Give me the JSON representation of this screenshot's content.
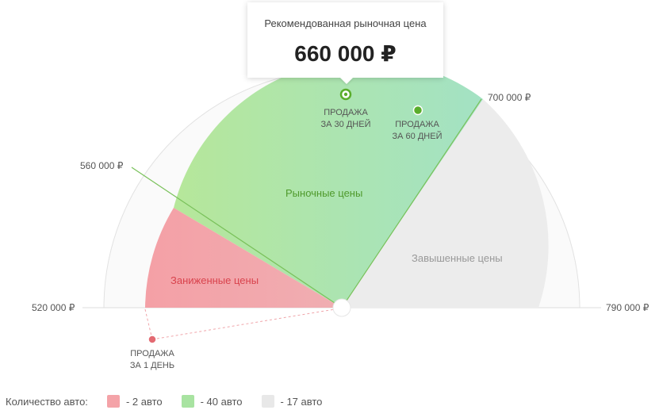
{
  "tooltip": {
    "title": "Рекомендованная рыночная цена",
    "price": "660 000 ₽"
  },
  "scale": {
    "min_label": "520 000 ₽",
    "low_label": "560 000 ₽",
    "high_label": "700 000 ₽",
    "max_label": "790 000 ₽",
    "min": 520000,
    "low": 560000,
    "recommended": 660000,
    "high": 700000,
    "max": 790000
  },
  "zones": {
    "low": "Заниженные цены",
    "market": "Рыночные цены",
    "high": "Завышенные цены"
  },
  "sale_markers": {
    "d30_line1": "ПРОДАЖА",
    "d30_line2": "ЗА 30 ДНЕЙ",
    "d60_line1": "ПРОДАЖА",
    "d60_line2": "ЗА 60 ДНЕЙ",
    "d1_line1": "ПРОДАЖА",
    "d1_line2": "ЗА 1 ДЕНЬ"
  },
  "legend": {
    "label": "Количество авто:",
    "low": "- 2 авто",
    "market": "- 40 авто",
    "high": "- 17 авто"
  },
  "colors": {
    "low": "#f4a3a8",
    "market": "#a8e3a1",
    "high": "#e8e8e8",
    "accent_green": "#5aad2b",
    "accent_red": "#e36a72"
  }
}
